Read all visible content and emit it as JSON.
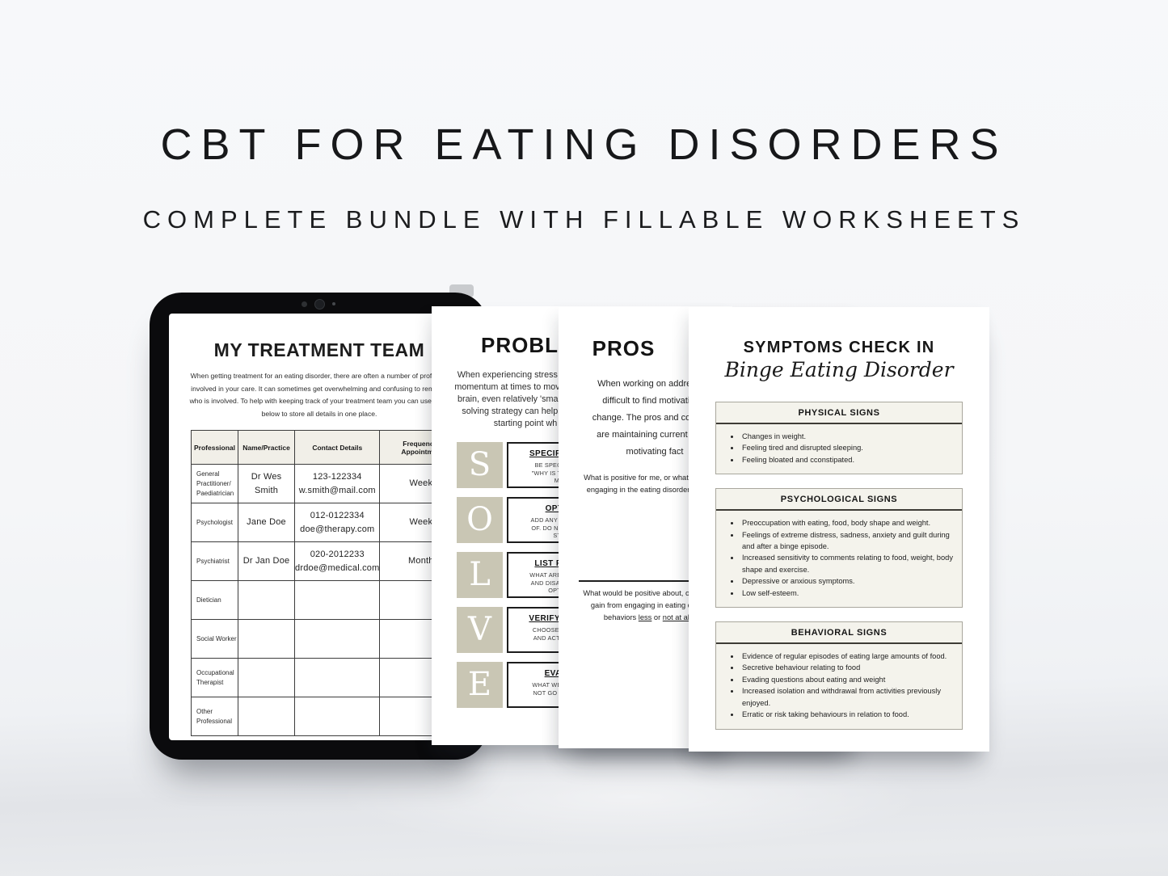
{
  "colors": {
    "accent_beige": "#c9c6b4",
    "cream": "#f4f3ec",
    "bezel_black": "#0b0b0d",
    "page_white": "#ffffff"
  },
  "header": {
    "title": "CBT FOR EATING DISORDERS",
    "subtitle": "COMPLETE BUNDLE WITH FILLABLE WORKSHEETS"
  },
  "tablet_page": {
    "title": "MY TREATMENT TEAM",
    "intro_lines": [
      "When getting treatment for an eating disorder, there are often a number of professio",
      "involved in your care. It can sometimes get overwhelming and confusing to rememb",
      "who is involved. To help with keeping track of your treatment team you can use the g",
      "below to store all details in one place."
    ],
    "table": {
      "headers": [
        "Professional",
        "Name/Practice",
        "Contact Details",
        "Frequency of Appointments"
      ],
      "rows": [
        {
          "professional": "General Practitioner/ Paediatrician",
          "name": "Dr Wes Smith",
          "contact1": "123-122334",
          "contact2": "w.smith@mail.com",
          "frequency": "Weekly"
        },
        {
          "professional": "Psychologist",
          "name": "Jane Doe",
          "contact1": "012-0122334",
          "contact2": "doe@therapy.com",
          "frequency": "Weekly"
        },
        {
          "professional": "Psychiatrist",
          "name": "Dr Jan Doe",
          "contact1": "020-2012233",
          "contact2": "drdoe@medical.com",
          "frequency": "Monthly"
        },
        {
          "professional": "Dietician",
          "name": "",
          "contact1": "",
          "contact2": "",
          "frequency": ""
        },
        {
          "professional": "Social Worker",
          "name": "",
          "contact1": "",
          "contact2": "",
          "frequency": ""
        },
        {
          "professional": "Occupational Therapist",
          "name": "",
          "contact1": "",
          "contact2": "",
          "frequency": ""
        },
        {
          "professional": "Other Professional",
          "name": "",
          "contact1": "",
          "contact2": "",
          "frequency": ""
        }
      ]
    }
  },
  "problem_page": {
    "title_fragment": "PROBL",
    "intro_lines": [
      "When experiencing stress or overw",
      "momentum at times to move forward",
      "brain, even relatively 'small' probler",
      "solving strategy can help get you",
      "starting point wh"
    ],
    "solve_steps": [
      {
        "letter": "S",
        "heading": "SPECIFY THE P",
        "lines": [
          "BE SPECIFIC. ASK",
          "\"WHY IS THIS A PRO",
          "ME?\""
        ]
      },
      {
        "letter": "O",
        "heading": "OPTION",
        "lines": [
          "ADD ANY IDEAS YOU",
          "OF. DO NOT EVALUA",
          "STEP."
        ]
      },
      {
        "letter": "L",
        "heading": "LIST PROS &",
        "lines": [
          "WHAT ARE THE LIKEL",
          "AND DISADVANTAGE",
          "OPTION?"
        ]
      },
      {
        "letter": "V",
        "heading": "VERIFY THE SO",
        "lines": [
          "CHOOSE THE BEST",
          "AND ACTION YOUR",
          ""
        ]
      },
      {
        "letter": "E",
        "heading": "EVALUA",
        "lines": [
          "WHAT WENT WELL?",
          "NOT GO WELL (IF A",
          ""
        ]
      }
    ]
  },
  "pros_page": {
    "title_fragment": "PROS",
    "intro_lines": [
      "When working on addressing",
      "difficult to find motivation a",
      "change. The pros and cons grid",
      "are maintaining current levels",
      "motivating fact"
    ],
    "question1_lines": [
      "What is positive for me, or what do I gai",
      "engaging in the eating disorder behav"
    ],
    "question2_lines": [
      "What would be positive about, or what c",
      "gain from engaging in eating disord"
    ],
    "question2_line3": {
      "seg1": "behaviors ",
      "seg2_underlined": "less",
      "seg3": " or ",
      "seg4_underlined": "not at all",
      "seg5": "?"
    }
  },
  "symptoms_page": {
    "title": "SYMPTOMS CHECK IN",
    "subtitle": "Binge Eating Disorder",
    "sections": [
      {
        "heading": "PHYSICAL SIGNS",
        "bullets": [
          "Changes in weight.",
          "Feeling tired and disrupted sleeping.",
          "Feeling bloated and cconstipated."
        ]
      },
      {
        "heading": "PSYCHOLOGICAL SIGNS",
        "bullets": [
          "Preoccupation with eating, food, body shape and weight.",
          "Feelings of extreme distress, sadness, anxiety and guilt during and after a binge episode.",
          "Increased sensitivity to comments relating to food, weight, body shape and exercise.",
          "Depressive or anxious symptoms.",
          "Low self-esteem."
        ]
      },
      {
        "heading": "BEHAVIORAL SIGNS",
        "bullets": [
          "Evidence of regular episodes of eating large amounts of food.",
          "Secretive behaviour relating to food",
          "Evading questions about eating and weight",
          "Increased isolation and withdrawal from activities previously enjoyed.",
          "Erratic or risk taking behaviours in relation to food."
        ]
      }
    ]
  }
}
